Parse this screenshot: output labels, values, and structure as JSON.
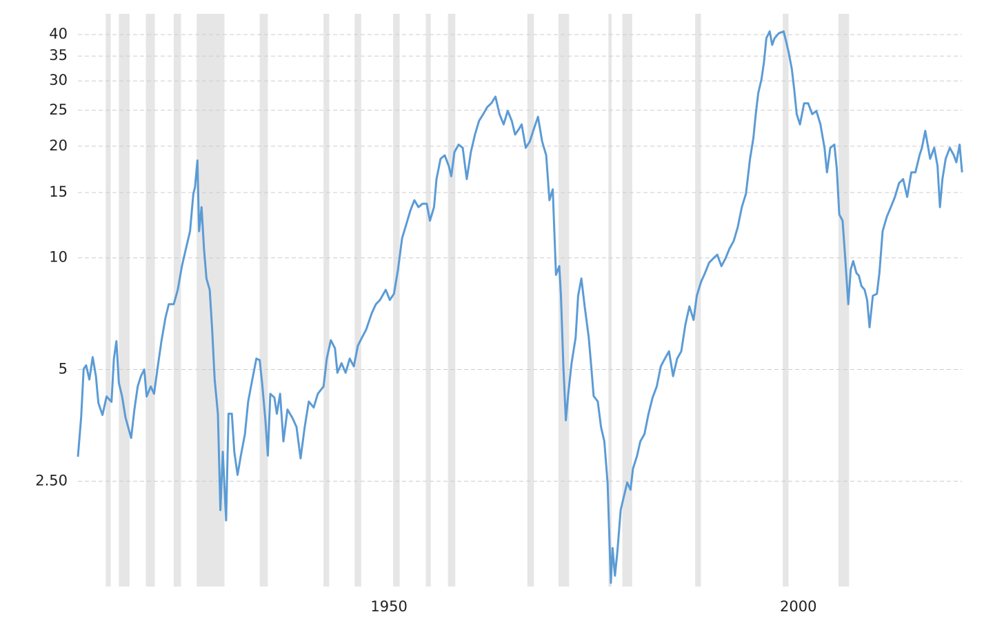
{
  "chart_data": {
    "type": "line",
    "log_y": true,
    "grid": true,
    "xlim": [
      1912,
      2021.5
    ],
    "xticks": [
      1950,
      2000
    ],
    "ylim": [
      1.3,
      45.5
    ],
    "yticks": [
      {
        "value": 2.5,
        "label": "2.50"
      },
      5,
      10,
      15,
      20,
      25,
      30,
      35,
      40
    ],
    "shade_color": "#e6e6e6",
    "recessions": [
      [
        1915.4,
        1916.0
      ],
      [
        1917.0,
        1918.3
      ],
      [
        1920.3,
        1921.4
      ],
      [
        1923.7,
        1924.6
      ],
      [
        1926.5,
        1929.9
      ],
      [
        1934.2,
        1935.2
      ],
      [
        1942.0,
        1942.7
      ],
      [
        1945.8,
        1946.6
      ],
      [
        1950.5,
        1951.3
      ],
      [
        1954.5,
        1955.1
      ],
      [
        1957.2,
        1958.1
      ],
      [
        1966.9,
        1967.7
      ],
      [
        1970.7,
        1972.0
      ],
      [
        1976.8,
        1977.2
      ],
      [
        1978.5,
        1979.7
      ],
      [
        1987.4,
        1988.1
      ],
      [
        1998.1,
        1998.8
      ],
      [
        2004.9,
        2006.2
      ]
    ],
    "series": [
      {
        "color": "#5b9bd5",
        "x": [
          1912.0,
          1912.4,
          1912.7,
          1913.0,
          1913.4,
          1913.8,
          1914.2,
          1914.5,
          1915.0,
          1915.5,
          1916.1,
          1916.4,
          1916.7,
          1917.0,
          1917.4,
          1917.8,
          1918.5,
          1918.9,
          1919.3,
          1919.7,
          1920.1,
          1920.4,
          1920.9,
          1921.3,
          1921.7,
          1922.2,
          1922.7,
          1923.1,
          1923.7,
          1924.2,
          1924.7,
          1925.2,
          1925.7,
          1926.1,
          1926.3,
          1926.6,
          1926.8,
          1927.1,
          1927.4,
          1927.7,
          1928.1,
          1928.4,
          1928.7,
          1929.1,
          1929.4,
          1929.7,
          1930.1,
          1930.4,
          1930.8,
          1931.1,
          1931.5,
          1931.9,
          1932.4,
          1932.8,
          1933.3,
          1933.8,
          1934.2,
          1934.5,
          1934.9,
          1935.2,
          1935.5,
          1936.0,
          1936.3,
          1936.7,
          1937.1,
          1937.6,
          1938.2,
          1938.7,
          1939.2,
          1939.7,
          1940.2,
          1940.8,
          1941.3,
          1942.0,
          1942.4,
          1942.9,
          1943.4,
          1943.7,
          1944.2,
          1944.7,
          1945.2,
          1945.7,
          1946.2,
          1946.7,
          1947.2,
          1947.9,
          1948.4,
          1948.9,
          1949.6,
          1950.1,
          1950.6,
          1951.1,
          1951.6,
          1952.1,
          1952.6,
          1953.1,
          1953.6,
          1954.1,
          1954.6,
          1955.0,
          1955.5,
          1955.8,
          1956.3,
          1956.8,
          1957.3,
          1957.6,
          1958.0,
          1958.5,
          1959.0,
          1959.5,
          1960.0,
          1960.5,
          1961.0,
          1961.5,
          1962.0,
          1962.5,
          1963.0,
          1963.5,
          1964.0,
          1964.5,
          1965.0,
          1965.4,
          1965.9,
          1966.2,
          1966.7,
          1967.2,
          1967.7,
          1968.2,
          1968.7,
          1969.2,
          1969.6,
          1970.0,
          1970.4,
          1970.8,
          1971.0,
          1971.3,
          1971.6,
          1971.9,
          1972.3,
          1972.8,
          1973.1,
          1973.5,
          1973.9,
          1974.4,
          1974.7,
          1975.0,
          1975.5,
          1975.9,
          1976.3,
          1976.7,
          1977.1,
          1977.3,
          1977.6,
          1977.9,
          1978.3,
          1978.7,
          1979.1,
          1979.5,
          1979.8,
          1980.3,
          1980.7,
          1981.2,
          1981.7,
          1982.2,
          1982.7,
          1983.2,
          1983.7,
          1984.2,
          1984.7,
          1985.2,
          1985.7,
          1986.2,
          1986.7,
          1987.2,
          1987.6,
          1988.1,
          1988.6,
          1989.1,
          1989.6,
          1990.1,
          1990.6,
          1991.1,
          1991.6,
          1992.1,
          1992.6,
          1993.1,
          1993.6,
          1994.1,
          1994.5,
          1994.8,
          1995.1,
          1995.5,
          1995.8,
          1996.1,
          1996.5,
          1996.8,
          1997.1,
          1997.6,
          1998.2,
          1998.5,
          1998.8,
          1999.2,
          1999.5,
          1999.8,
          2000.2,
          2000.7,
          2001.2,
          2001.7,
          2002.2,
          2002.7,
          2003.2,
          2003.5,
          2003.9,
          2004.4,
          2004.7,
          2005.0,
          2005.4,
          2005.7,
          2006.1,
          2006.4,
          2006.7,
          2007.1,
          2007.4,
          2007.7,
          2008.1,
          2008.4,
          2008.7,
          2009.1,
          2009.6,
          2009.9,
          2010.3,
          2010.8,
          2011.3,
          2011.8,
          2012.3,
          2012.8,
          2013.3,
          2013.8,
          2014.3,
          2014.8,
          2015.1,
          2015.5,
          2015.8,
          2016.1,
          2016.6,
          2017.0,
          2017.3,
          2017.6,
          2018.0,
          2018.5,
          2019.0,
          2019.3,
          2019.7,
          2020.0
        ],
        "values": [
          2.91,
          3.72,
          5.02,
          5.13,
          4.7,
          5.4,
          4.8,
          4.06,
          3.77,
          4.23,
          4.09,
          5.35,
          5.96,
          4.6,
          4.23,
          3.72,
          3.27,
          3.9,
          4.5,
          4.8,
          5.0,
          4.23,
          4.5,
          4.3,
          5.0,
          5.96,
          6.9,
          7.5,
          7.5,
          8.2,
          9.5,
          10.6,
          11.8,
          14.9,
          15.5,
          18.3,
          11.8,
          13.7,
          10.6,
          8.8,
          8.2,
          6.4,
          4.7,
          3.8,
          2.09,
          3.0,
          1.96,
          3.8,
          3.8,
          3.0,
          2.6,
          2.93,
          3.35,
          4.1,
          4.7,
          5.35,
          5.3,
          4.6,
          3.65,
          2.93,
          4.3,
          4.2,
          3.8,
          4.3,
          3.2,
          3.9,
          3.7,
          3.5,
          2.88,
          3.5,
          4.1,
          3.95,
          4.3,
          4.5,
          5.35,
          6.0,
          5.7,
          4.9,
          5.2,
          4.9,
          5.35,
          5.1,
          5.8,
          6.1,
          6.4,
          7.1,
          7.5,
          7.7,
          8.2,
          7.7,
          8.0,
          9.3,
          11.3,
          12.3,
          13.4,
          14.3,
          13.7,
          14.0,
          14.0,
          12.6,
          13.7,
          16.3,
          18.5,
          18.9,
          17.7,
          16.6,
          19.3,
          20.2,
          19.8,
          16.3,
          19.3,
          21.5,
          23.4,
          24.4,
          25.5,
          26.1,
          27.2,
          24.4,
          22.9,
          24.9,
          23.4,
          21.5,
          22.3,
          22.9,
          19.8,
          20.6,
          22.3,
          24.0,
          20.6,
          18.9,
          14.3,
          15.3,
          9.0,
          9.5,
          7.9,
          5.1,
          3.65,
          4.3,
          5.2,
          6.1,
          7.9,
          8.8,
          7.4,
          6.1,
          5.1,
          4.24,
          4.1,
          3.5,
          3.2,
          2.48,
          1.33,
          1.65,
          1.39,
          1.62,
          2.09,
          2.28,
          2.48,
          2.37,
          2.7,
          2.93,
          3.2,
          3.35,
          3.8,
          4.2,
          4.5,
          5.1,
          5.35,
          5.6,
          4.8,
          5.35,
          5.6,
          6.6,
          7.4,
          6.8,
          7.9,
          8.6,
          9.1,
          9.7,
          9.96,
          10.2,
          9.5,
          9.96,
          10.6,
          11.1,
          12.1,
          13.7,
          14.9,
          18.5,
          21.0,
          24.4,
          27.8,
          30.3,
          33.7,
          39.1,
          40.8,
          37.5,
          39.1,
          40.3,
          40.8,
          38.4,
          36.0,
          32.3,
          28.4,
          24.4,
          22.9,
          26.1,
          26.1,
          24.4,
          24.9,
          22.9,
          19.8,
          17.0,
          19.8,
          20.2,
          17.4,
          13.1,
          12.6,
          10.2,
          7.5,
          9.3,
          9.8,
          9.1,
          8.95,
          8.4,
          8.2,
          7.7,
          6.5,
          7.9,
          8.0,
          9.1,
          11.8,
          12.9,
          13.7,
          14.6,
          15.9,
          16.3,
          14.6,
          17.0,
          17.0,
          18.9,
          19.8,
          22.0,
          20.2,
          18.5,
          19.8,
          17.7,
          13.7,
          16.3,
          18.5,
          19.8,
          18.9,
          18.1,
          20.2,
          17.0
        ]
      }
    ]
  }
}
